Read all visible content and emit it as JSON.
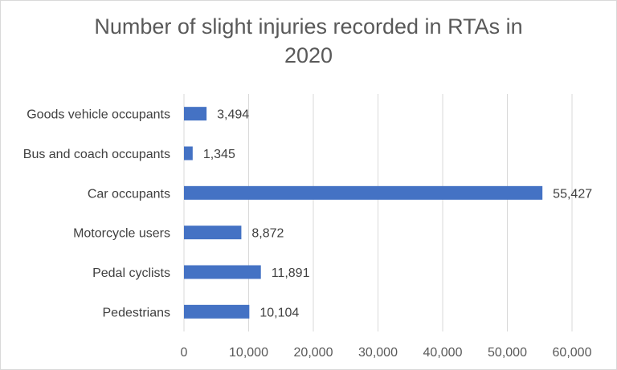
{
  "chart_data": {
    "type": "bar",
    "orientation": "horizontal",
    "title": "Number of slight injuries recorded in RTAs in 2020",
    "title_line1": "Number of slight injuries recorded in RTAs in",
    "title_line2": "2020",
    "xlabel": "",
    "ylabel": "",
    "categories": [
      "Goods vehicle occupants",
      "Bus and coach occupants",
      "Car occupants",
      "Motorcycle users",
      "Pedal cyclists",
      "Pedestrians"
    ],
    "values": [
      3494,
      1345,
      55427,
      8872,
      11891,
      10104
    ],
    "value_labels": [
      "3,494",
      "1,345",
      "55,427",
      "8,872",
      "11,891",
      "10,104"
    ],
    "xlim": [
      0,
      60000
    ],
    "xticks": [
      0,
      10000,
      20000,
      30000,
      40000,
      50000,
      60000
    ],
    "xtick_labels": [
      "0",
      "10,000",
      "20,000",
      "30,000",
      "40,000",
      "50,000",
      "60,000"
    ],
    "grid": true,
    "legend": "none",
    "bar_color": "#4472c4"
  }
}
